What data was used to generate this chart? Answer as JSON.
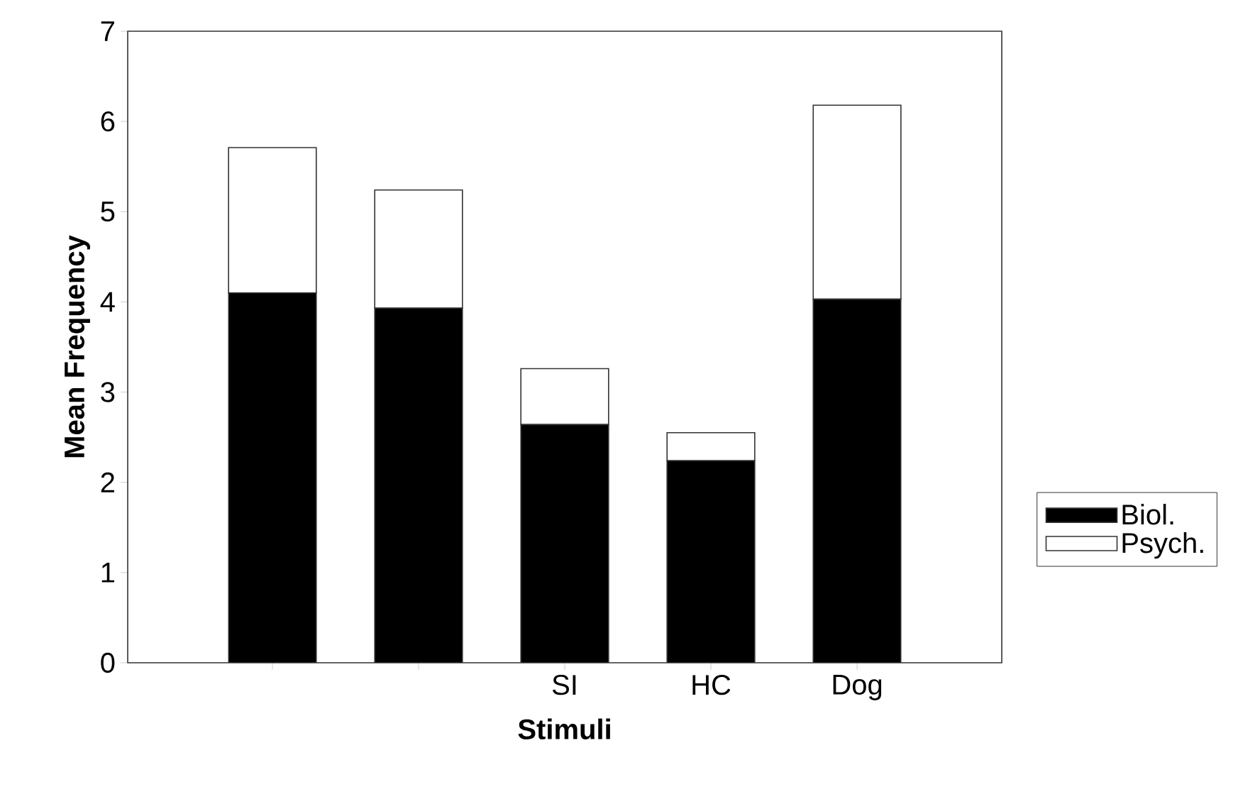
{
  "chart_data": {
    "type": "bar",
    "stacked": true,
    "xlabel": "Stimuli",
    "ylabel": "Mean Frequency",
    "categories": [
      null,
      null,
      "SI",
      "HC",
      "Dog"
    ],
    "series": [
      {
        "name": "Biol.",
        "color": "#000000",
        "values": [
          4.1,
          3.93,
          2.64,
          2.24,
          4.03
        ]
      },
      {
        "name": "Psych.",
        "color": "#ffffff",
        "values": [
          1.61,
          1.31,
          0.62,
          0.31,
          2.15
        ]
      }
    ],
    "ylim": [
      0,
      7
    ],
    "yticks": [
      0,
      1,
      2,
      3,
      4,
      5,
      6,
      7
    ],
    "legend": "right"
  }
}
